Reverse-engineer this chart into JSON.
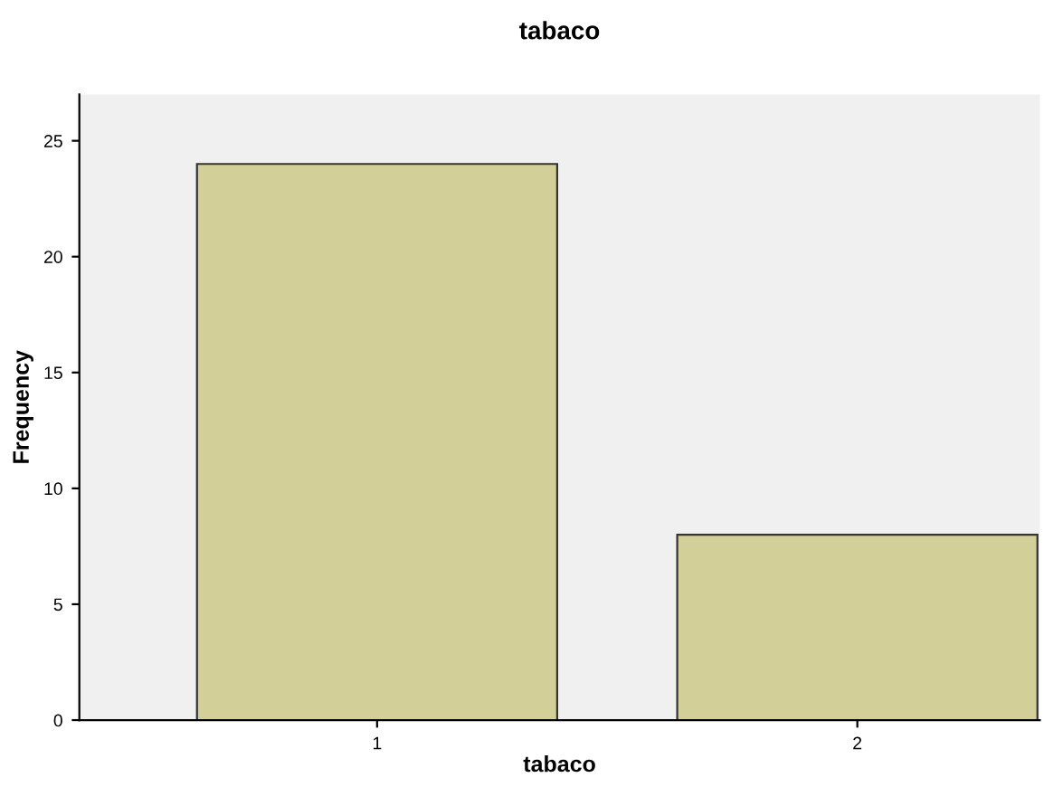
{
  "chart_data": {
    "type": "bar",
    "title": "tabaco",
    "xlabel": "tabaco",
    "ylabel": "Frequency",
    "categories": [
      "1",
      "2"
    ],
    "values": [
      24,
      8
    ],
    "color": "#d3cf98",
    "ylim": [
      0,
      27
    ],
    "yticks": [
      0,
      5,
      10,
      15,
      20,
      25
    ],
    "grid": false
  }
}
